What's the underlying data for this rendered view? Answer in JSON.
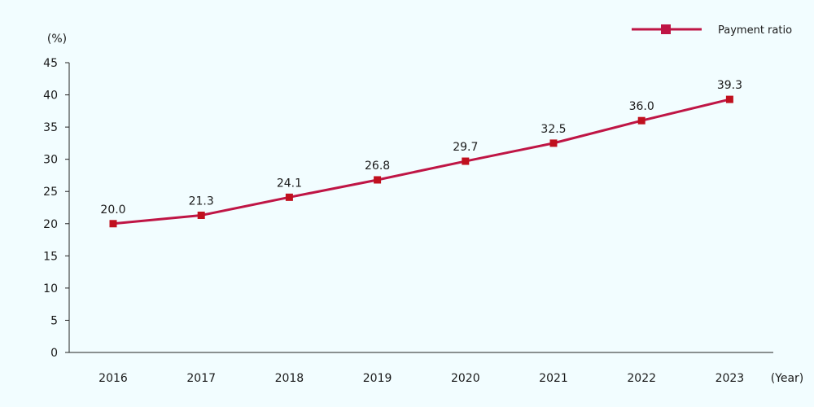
{
  "chart_data": {
    "type": "line",
    "x": [
      "2016",
      "2017",
      "2018",
      "2019",
      "2020",
      "2021",
      "2022",
      "2023"
    ],
    "series": [
      {
        "name": "Payment ratio",
        "values": [
          20.0,
          21.3,
          24.1,
          26.8,
          29.7,
          32.5,
          36.0,
          39.3
        ],
        "labels": [
          "20.0",
          "21.3",
          "24.1",
          "26.8",
          "29.7",
          "32.5",
          "36.0",
          "39.3"
        ]
      }
    ],
    "y_unit_label": "(%)",
    "x_unit_label": "(Year)",
    "ylim": [
      0,
      45
    ],
    "y_ticks": [
      "0",
      "5",
      "10",
      "15",
      "20",
      "25",
      "30",
      "35",
      "40",
      "45"
    ],
    "grid": false,
    "legend_position": "top-right",
    "colors": {
      "line": "#bf1545",
      "marker": "#c0101e",
      "axis": "#222222"
    }
  }
}
